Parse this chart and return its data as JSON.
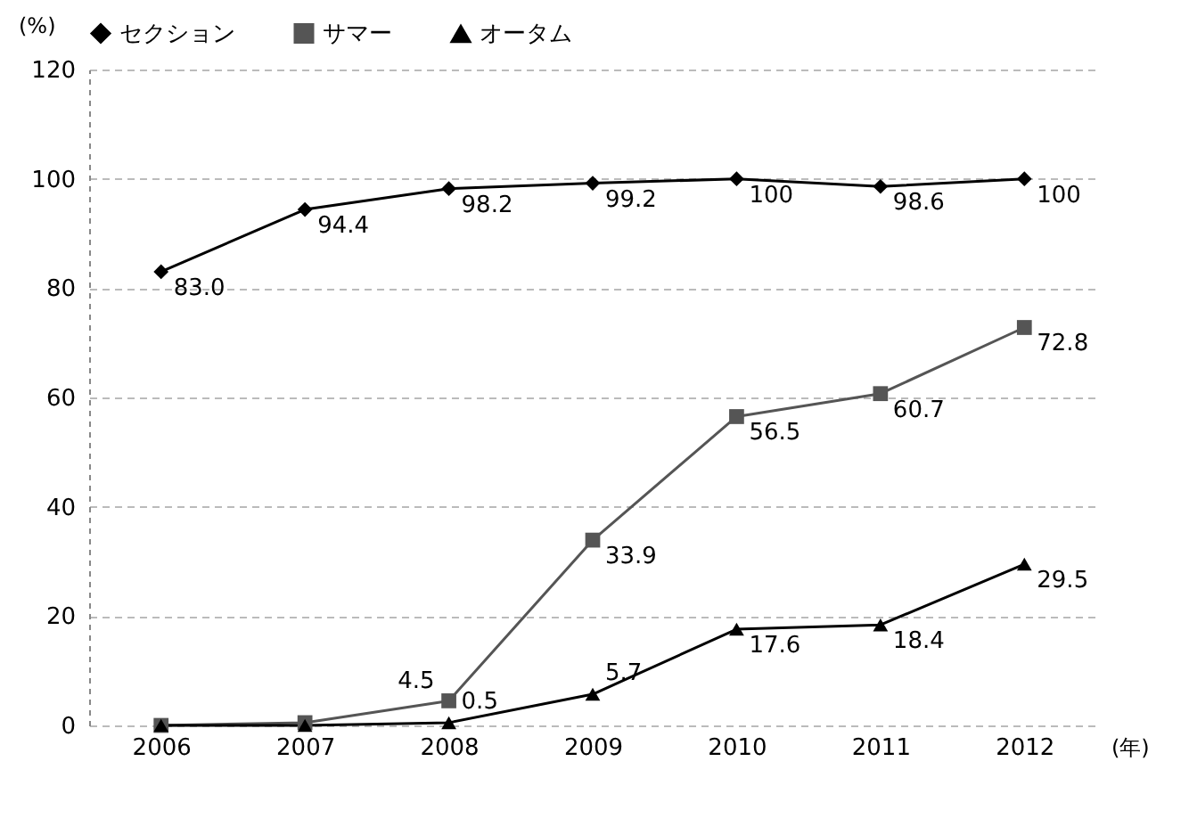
{
  "chart_data": {
    "type": "line",
    "xlabel": "(年)",
    "ylabel": "(%)",
    "categories": [
      "2006",
      "2007",
      "2008",
      "2009",
      "2010",
      "2011",
      "2012"
    ],
    "series": [
      {
        "name": "セクション",
        "color": "#000000",
        "marker": "diamond",
        "values": [
          83.0,
          94.4,
          98.2,
          99.2,
          100,
          98.6,
          100
        ],
        "value_labels": [
          "83.0",
          "94.4",
          "98.2",
          "99.2",
          "100",
          "98.6",
          "100"
        ]
      },
      {
        "name": "サマー",
        "color": "#555555",
        "marker": "square",
        "values": [
          0,
          0.5,
          4.5,
          33.9,
          56.5,
          60.7,
          72.8
        ],
        "value_labels": [
          null,
          null,
          "4.5",
          "33.9",
          "56.5",
          "60.7",
          "72.8"
        ]
      },
      {
        "name": "オータム",
        "color": "#000000",
        "marker": "triangle",
        "values": [
          0,
          0,
          0.5,
          5.7,
          17.6,
          18.4,
          29.5
        ],
        "value_labels": [
          null,
          null,
          "0.5",
          "5.7",
          "17.6",
          "18.4",
          "29.5"
        ]
      }
    ],
    "ylim": [
      0,
      120
    ],
    "yticks": [
      0,
      20,
      40,
      60,
      80,
      100,
      120
    ],
    "grid": "y",
    "legend": "top",
    "line_style": "solid"
  }
}
